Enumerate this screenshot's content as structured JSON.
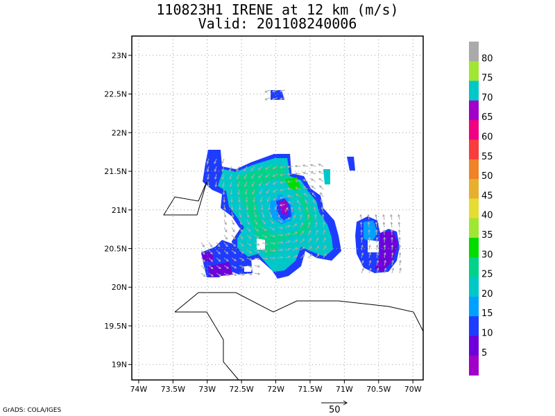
{
  "title_line1": "110823H1 IRENE at 12 km (m/s)",
  "title_line2": "Valid: 201108240006",
  "credit": "GrADS: COLA/IGES",
  "vector_scale_label": "50",
  "map": {
    "lon_range": [
      -74.1,
      -69.85
    ],
    "lat_range": [
      18.8,
      23.25
    ],
    "x_ticks": [
      "74W",
      "73.5W",
      "73W",
      "72.5W",
      "72W",
      "71.5W",
      "71W",
      "70.5W",
      "70W"
    ],
    "y_ticks": [
      "19N",
      "19.5N",
      "20N",
      "20.5N",
      "21N",
      "21.5N",
      "22N",
      "22.5N",
      "23N"
    ],
    "grid": "dotted"
  },
  "colorbar": {
    "labels": [
      "5",
      "10",
      "15",
      "20",
      "25",
      "30",
      "35",
      "40",
      "45",
      "50",
      "55",
      "60",
      "65",
      "70",
      "75",
      "80"
    ],
    "colors": [
      "#a000c8",
      "#6e00dc",
      "#1e3cff",
      "#00a0ff",
      "#00c8c8",
      "#00d28c",
      "#00dc00",
      "#a0e632",
      "#e6dc32",
      "#e6af2d",
      "#f08228",
      "#fa3c3c",
      "#f00082",
      "#a000c8",
      "#00c8c8",
      "#a0e632",
      "#aaaaaa"
    ]
  }
}
